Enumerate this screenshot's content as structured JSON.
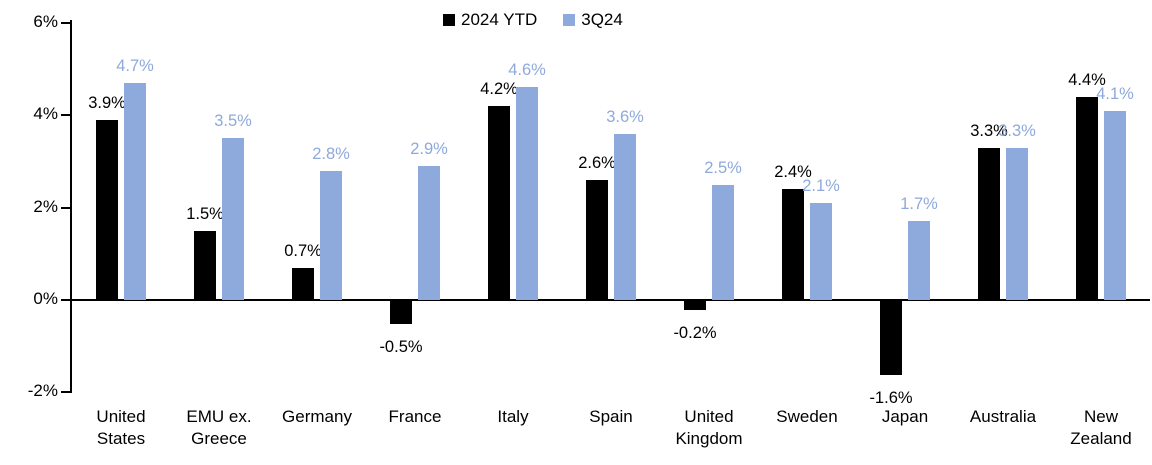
{
  "chart_data": {
    "type": "bar",
    "title": "",
    "categories": [
      "United States",
      "EMU ex. Greece",
      "Germany",
      "France",
      "Italy",
      "Spain",
      "United Kingdom",
      "Sweden",
      "Japan",
      "Australia",
      "New Zealand"
    ],
    "series": [
      {
        "name": "2024 YTD",
        "color": "#000000",
        "values": [
          3.9,
          1.5,
          0.7,
          -0.5,
          4.2,
          2.6,
          -0.2,
          2.4,
          -1.6,
          3.3,
          4.4
        ],
        "labels": [
          "3.9%",
          "1.5%",
          "0.7%",
          "-0.5%",
          "4.2%",
          "2.6%",
          "-0.2%",
          "2.4%",
          "-1.6%",
          "3.3%",
          "4.4%"
        ]
      },
      {
        "name": "3Q24",
        "color": "#8EA9DB",
        "values": [
          4.7,
          3.5,
          2.8,
          2.9,
          4.6,
          3.6,
          2.5,
          2.1,
          1.7,
          3.3,
          4.1
        ],
        "labels": [
          "4.7%",
          "3.5%",
          "2.8%",
          "2.9%",
          "4.6%",
          "3.6%",
          "2.5%",
          "2.1%",
          "1.7%",
          "3.3%",
          "4.1%"
        ]
      }
    ],
    "y_axis": {
      "tick_labels": [
        "6%",
        "4%",
        "2%",
        "0%",
        "-2%"
      ],
      "tick_values": [
        6,
        4,
        2,
        0,
        -2
      ],
      "min": -2,
      "max": 6,
      "unit": "%"
    },
    "legend": {
      "position": "top-center",
      "entries": [
        "2024 YTD",
        "3Q24"
      ]
    },
    "grid": false,
    "data_label_format": "0.0%"
  }
}
